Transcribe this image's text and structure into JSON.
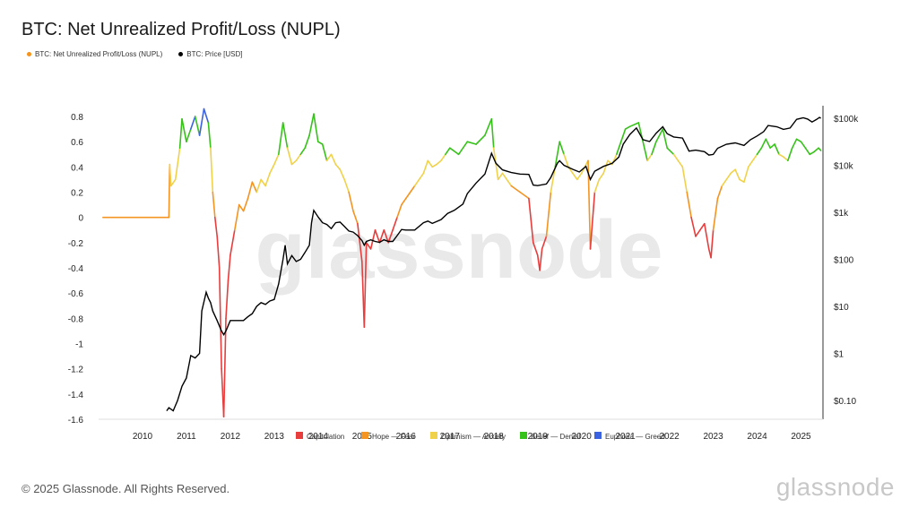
{
  "title": "BTC: Net Unrealized Profit/Loss (NUPL)",
  "legend": [
    {
      "label": "BTC: Net Unrealized Profit/Loss (NUPL)",
      "color": "#f7931a"
    },
    {
      "label": "BTC: Price [USD]",
      "color": "#000000"
    }
  ],
  "footer": "© 2025 Glassnode. All Rights Reserved.",
  "brand": "glassnode",
  "watermark": "glassnode",
  "colors": {
    "capitulation": "#e83d3d",
    "hope_fear": "#f39423",
    "optimism_anxiety": "#f0d24a",
    "belief_denial": "#36c21a",
    "euphoria_greed": "#3b62e0",
    "price": "#000000",
    "flat": "#f39423"
  },
  "chart_data": {
    "type": "line",
    "title": "BTC: Net Unrealized Profit/Loss (NUPL)",
    "y_left": {
      "ylim": [
        -1.6,
        0.9
      ],
      "ticks": [
        "0.8",
        "0.6",
        "0.4",
        "0.2",
        "0",
        "-0.2",
        "-0.4",
        "-0.6",
        "-0.8",
        "-1",
        "-1.2",
        "-1.4",
        "-1.6"
      ]
    },
    "y_right": {
      "scale": "log",
      "ticks": [
        "$100k",
        "$10k",
        "$1k",
        "$100",
        "$10",
        "$1",
        "$0.10"
      ]
    },
    "x_ticks": [
      "2010",
      "2011",
      "2012",
      "2013",
      "2014",
      "2015",
      "2016",
      "2017",
      "2018",
      "2019",
      "2020",
      "2021",
      "2022",
      "2023",
      "2024",
      "2025"
    ],
    "x_range": [
      "2009-01",
      "2025-06"
    ],
    "zones": [
      {
        "name": "Capitulation",
        "color": "#e83d3d",
        "range": [
          -1.6,
          0
        ]
      },
      {
        "name": "Hope — Fear",
        "color": "#f39423",
        "range": [
          0,
          0.25
        ]
      },
      {
        "name": "Optimism — Anxiety",
        "color": "#f0d24a",
        "range": [
          0.25,
          0.5
        ]
      },
      {
        "name": "Belief — Denial",
        "color": "#36c21a",
        "range": [
          0.5,
          0.75
        ]
      },
      {
        "name": "Euphoria — Greed",
        "color": "#3b62e0",
        "range": [
          0.75,
          1.0
        ]
      }
    ],
    "series": [
      {
        "name": "BTC: Net Unrealized Profit/Loss (NUPL)",
        "points": [
          [
            2009.1,
            0
          ],
          [
            2010.6,
            0
          ],
          [
            2010.62,
            0.42
          ],
          [
            2010.65,
            0.25
          ],
          [
            2010.75,
            0.3
          ],
          [
            2010.85,
            0.55
          ],
          [
            2010.9,
            0.78
          ],
          [
            2011.0,
            0.6
          ],
          [
            2011.1,
            0.7
          ],
          [
            2011.2,
            0.8
          ],
          [
            2011.3,
            0.65
          ],
          [
            2011.4,
            0.86
          ],
          [
            2011.5,
            0.75
          ],
          [
            2011.55,
            0.55
          ],
          [
            2011.6,
            0.2
          ],
          [
            2011.65,
            0.0
          ],
          [
            2011.7,
            -0.15
          ],
          [
            2011.75,
            -0.4
          ],
          [
            2011.8,
            -1.2
          ],
          [
            2011.85,
            -1.58
          ],
          [
            2011.9,
            -0.8
          ],
          [
            2011.95,
            -0.5
          ],
          [
            2012.0,
            -0.3
          ],
          [
            2012.1,
            -0.1
          ],
          [
            2012.2,
            0.1
          ],
          [
            2012.3,
            0.05
          ],
          [
            2012.4,
            0.15
          ],
          [
            2012.5,
            0.28
          ],
          [
            2012.6,
            0.2
          ],
          [
            2012.7,
            0.3
          ],
          [
            2012.8,
            0.25
          ],
          [
            2012.9,
            0.35
          ],
          [
            2013.0,
            0.42
          ],
          [
            2013.1,
            0.5
          ],
          [
            2013.2,
            0.75
          ],
          [
            2013.3,
            0.55
          ],
          [
            2013.4,
            0.42
          ],
          [
            2013.5,
            0.45
          ],
          [
            2013.6,
            0.5
          ],
          [
            2013.7,
            0.55
          ],
          [
            2013.8,
            0.65
          ],
          [
            2013.9,
            0.82
          ],
          [
            2014.0,
            0.6
          ],
          [
            2014.1,
            0.58
          ],
          [
            2014.2,
            0.45
          ],
          [
            2014.3,
            0.5
          ],
          [
            2014.4,
            0.42
          ],
          [
            2014.5,
            0.38
          ],
          [
            2014.6,
            0.3
          ],
          [
            2014.7,
            0.2
          ],
          [
            2014.8,
            0.05
          ],
          [
            2014.9,
            -0.05
          ],
          [
            2015.0,
            -0.35
          ],
          [
            2015.05,
            -0.87
          ],
          [
            2015.1,
            -0.2
          ],
          [
            2015.2,
            -0.25
          ],
          [
            2015.3,
            -0.1
          ],
          [
            2015.4,
            -0.2
          ],
          [
            2015.5,
            -0.1
          ],
          [
            2015.6,
            -0.2
          ],
          [
            2015.7,
            -0.1
          ],
          [
            2015.8,
            0.0
          ],
          [
            2015.9,
            0.1
          ],
          [
            2016.0,
            0.15
          ],
          [
            2016.1,
            0.2
          ],
          [
            2016.2,
            0.25
          ],
          [
            2016.3,
            0.3
          ],
          [
            2016.4,
            0.35
          ],
          [
            2016.5,
            0.45
          ],
          [
            2016.6,
            0.4
          ],
          [
            2016.7,
            0.42
          ],
          [
            2016.8,
            0.45
          ],
          [
            2016.9,
            0.5
          ],
          [
            2017.0,
            0.55
          ],
          [
            2017.2,
            0.5
          ],
          [
            2017.4,
            0.6
          ],
          [
            2017.6,
            0.58
          ],
          [
            2017.8,
            0.65
          ],
          [
            2017.95,
            0.78
          ],
          [
            2018.0,
            0.55
          ],
          [
            2018.1,
            0.3
          ],
          [
            2018.2,
            0.35
          ],
          [
            2018.4,
            0.25
          ],
          [
            2018.6,
            0.2
          ],
          [
            2018.8,
            0.15
          ],
          [
            2018.9,
            -0.2
          ],
          [
            2019.0,
            -0.3
          ],
          [
            2019.05,
            -0.42
          ],
          [
            2019.1,
            -0.25
          ],
          [
            2019.2,
            -0.15
          ],
          [
            2019.3,
            0.2
          ],
          [
            2019.4,
            0.4
          ],
          [
            2019.5,
            0.6
          ],
          [
            2019.6,
            0.5
          ],
          [
            2019.7,
            0.4
          ],
          [
            2019.8,
            0.35
          ],
          [
            2019.9,
            0.3
          ],
          [
            2020.0,
            0.35
          ],
          [
            2020.15,
            0.45
          ],
          [
            2020.2,
            -0.25
          ],
          [
            2020.3,
            0.2
          ],
          [
            2020.4,
            0.3
          ],
          [
            2020.5,
            0.35
          ],
          [
            2020.6,
            0.45
          ],
          [
            2020.7,
            0.42
          ],
          [
            2020.8,
            0.5
          ],
          [
            2020.9,
            0.6
          ],
          [
            2021.0,
            0.7
          ],
          [
            2021.1,
            0.72
          ],
          [
            2021.3,
            0.75
          ],
          [
            2021.4,
            0.6
          ],
          [
            2021.5,
            0.45
          ],
          [
            2021.6,
            0.5
          ],
          [
            2021.7,
            0.6
          ],
          [
            2021.85,
            0.7
          ],
          [
            2021.95,
            0.55
          ],
          [
            2022.1,
            0.5
          ],
          [
            2022.2,
            0.45
          ],
          [
            2022.3,
            0.4
          ],
          [
            2022.4,
            0.2
          ],
          [
            2022.5,
            0.0
          ],
          [
            2022.6,
            -0.15
          ],
          [
            2022.7,
            -0.1
          ],
          [
            2022.8,
            -0.05
          ],
          [
            2022.9,
            -0.25
          ],
          [
            2022.95,
            -0.32
          ],
          [
            2023.0,
            -0.1
          ],
          [
            2023.1,
            0.15
          ],
          [
            2023.2,
            0.25
          ],
          [
            2023.3,
            0.3
          ],
          [
            2023.4,
            0.35
          ],
          [
            2023.5,
            0.38
          ],
          [
            2023.6,
            0.3
          ],
          [
            2023.7,
            0.28
          ],
          [
            2023.8,
            0.4
          ],
          [
            2023.9,
            0.45
          ],
          [
            2024.0,
            0.5
          ],
          [
            2024.1,
            0.55
          ],
          [
            2024.2,
            0.62
          ],
          [
            2024.3,
            0.55
          ],
          [
            2024.4,
            0.58
          ],
          [
            2024.5,
            0.5
          ],
          [
            2024.6,
            0.48
          ],
          [
            2024.7,
            0.45
          ],
          [
            2024.8,
            0.55
          ],
          [
            2024.9,
            0.62
          ],
          [
            2025.0,
            0.6
          ],
          [
            2025.1,
            0.55
          ],
          [
            2025.2,
            0.5
          ],
          [
            2025.3,
            0.52
          ],
          [
            2025.4,
            0.55
          ],
          [
            2025.45,
            0.53
          ]
        ]
      },
      {
        "name": "BTC: Price [USD]",
        "points": [
          [
            2010.55,
            0.06
          ],
          [
            2010.6,
            0.07
          ],
          [
            2010.7,
            0.06
          ],
          [
            2010.8,
            0.1
          ],
          [
            2010.9,
            0.2
          ],
          [
            2011.0,
            0.3
          ],
          [
            2011.1,
            0.9
          ],
          [
            2011.2,
            0.8
          ],
          [
            2011.3,
            1
          ],
          [
            2011.35,
            8
          ],
          [
            2011.45,
            20
          ],
          [
            2011.5,
            15
          ],
          [
            2011.55,
            12
          ],
          [
            2011.6,
            8
          ],
          [
            2011.7,
            5
          ],
          [
            2011.8,
            3
          ],
          [
            2011.85,
            2.5
          ],
          [
            2011.9,
            3
          ],
          [
            2012.0,
            5
          ],
          [
            2012.1,
            5
          ],
          [
            2012.2,
            5
          ],
          [
            2012.3,
            5
          ],
          [
            2012.4,
            6
          ],
          [
            2012.5,
            7
          ],
          [
            2012.6,
            10
          ],
          [
            2012.7,
            12
          ],
          [
            2012.8,
            11
          ],
          [
            2012.9,
            13
          ],
          [
            2013.0,
            14
          ],
          [
            2013.1,
            30
          ],
          [
            2013.2,
            100
          ],
          [
            2013.25,
            200
          ],
          [
            2013.3,
            80
          ],
          [
            2013.4,
            120
          ],
          [
            2013.5,
            90
          ],
          [
            2013.6,
            100
          ],
          [
            2013.7,
            140
          ],
          [
            2013.8,
            200
          ],
          [
            2013.85,
            600
          ],
          [
            2013.9,
            1100
          ],
          [
            2014.0,
            800
          ],
          [
            2014.1,
            600
          ],
          [
            2014.2,
            550
          ],
          [
            2014.3,
            450
          ],
          [
            2014.4,
            600
          ],
          [
            2014.5,
            620
          ],
          [
            2014.6,
            500
          ],
          [
            2014.7,
            400
          ],
          [
            2014.8,
            380
          ],
          [
            2014.9,
            320
          ],
          [
            2015.0,
            250
          ],
          [
            2015.05,
            200
          ],
          [
            2015.1,
            240
          ],
          [
            2015.2,
            260
          ],
          [
            2015.3,
            240
          ],
          [
            2015.4,
            230
          ],
          [
            2015.5,
            260
          ],
          [
            2015.6,
            240
          ],
          [
            2015.7,
            240
          ],
          [
            2015.8,
            320
          ],
          [
            2015.9,
            430
          ],
          [
            2016.0,
            420
          ],
          [
            2016.2,
            420
          ],
          [
            2016.4,
            600
          ],
          [
            2016.5,
            650
          ],
          [
            2016.6,
            580
          ],
          [
            2016.8,
            700
          ],
          [
            2016.95,
            950
          ],
          [
            2017.1,
            1100
          ],
          [
            2017.3,
            1500
          ],
          [
            2017.4,
            2500
          ],
          [
            2017.6,
            4200
          ],
          [
            2017.8,
            6500
          ],
          [
            2017.95,
            18000
          ],
          [
            2018.05,
            11000
          ],
          [
            2018.2,
            8000
          ],
          [
            2018.4,
            7000
          ],
          [
            2018.6,
            6500
          ],
          [
            2018.8,
            6400
          ],
          [
            2018.9,
            3800
          ],
          [
            2019.0,
            3700
          ],
          [
            2019.2,
            4000
          ],
          [
            2019.3,
            5500
          ],
          [
            2019.45,
            11000
          ],
          [
            2019.5,
            12500
          ],
          [
            2019.6,
            10000
          ],
          [
            2019.8,
            8200
          ],
          [
            2019.95,
            7200
          ],
          [
            2020.1,
            9500
          ],
          [
            2020.2,
            5000
          ],
          [
            2020.3,
            7500
          ],
          [
            2020.5,
            9500
          ],
          [
            2020.7,
            11000
          ],
          [
            2020.85,
            15000
          ],
          [
            2020.95,
            28000
          ],
          [
            2021.1,
            45000
          ],
          [
            2021.25,
            62000
          ],
          [
            2021.4,
            35000
          ],
          [
            2021.55,
            32000
          ],
          [
            2021.7,
            48000
          ],
          [
            2021.85,
            66000
          ],
          [
            2021.95,
            47000
          ],
          [
            2022.1,
            40000
          ],
          [
            2022.3,
            38000
          ],
          [
            2022.45,
            20000
          ],
          [
            2022.6,
            21000
          ],
          [
            2022.8,
            19500
          ],
          [
            2022.9,
            16500
          ],
          [
            2023.0,
            17000
          ],
          [
            2023.1,
            23000
          ],
          [
            2023.3,
            28000
          ],
          [
            2023.5,
            30000
          ],
          [
            2023.7,
            26500
          ],
          [
            2023.85,
            35000
          ],
          [
            2024.0,
            42000
          ],
          [
            2024.15,
            52000
          ],
          [
            2024.25,
            70000
          ],
          [
            2024.45,
            66000
          ],
          [
            2024.6,
            58000
          ],
          [
            2024.75,
            62000
          ],
          [
            2024.9,
            95000
          ],
          [
            2025.05,
            102000
          ],
          [
            2025.15,
            96000
          ],
          [
            2025.25,
            83000
          ],
          [
            2025.35,
            94000
          ],
          [
            2025.42,
            104000
          ],
          [
            2025.45,
            100000
          ]
        ]
      }
    ]
  }
}
